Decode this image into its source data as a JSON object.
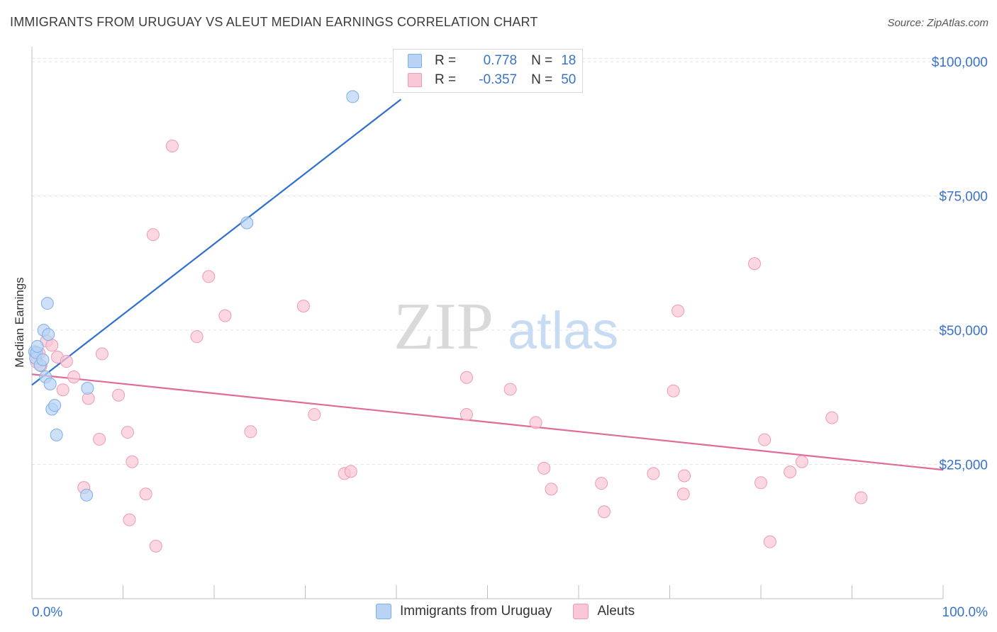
{
  "title": "IMMIGRANTS FROM URUGUAY VS ALEUT MEDIAN EARNINGS CORRELATION CHART",
  "source": "Source: ZipAtlas.com",
  "watermark": {
    "zip": "ZIP",
    "atlas": "atlas"
  },
  "colors": {
    "blue_fill": "#b8d3f3",
    "blue_stroke": "#7eaee6",
    "blue_line": "#2f6fd1",
    "pink_fill": "#f9c6d6",
    "pink_stroke": "#ee9ab5",
    "pink_line": "#e06b96",
    "value_text": "#3a73c9",
    "grid": "#dde3ea"
  },
  "legend_top": {
    "rows": [
      {
        "r_label": "R =",
        "r_value": "0.778",
        "n_label": "N =",
        "n_value": "18"
      },
      {
        "r_label": "R =",
        "r_value": "-0.357",
        "n_label": "N =",
        "n_value": "50"
      }
    ]
  },
  "chart_data": {
    "type": "scatter",
    "title": "IMMIGRANTS FROM URUGUAY VS ALEUT MEDIAN EARNINGS CORRELATION CHART",
    "xlabel": "",
    "ylabel": "Median Earnings",
    "xlim": [
      0,
      100
    ],
    "ylim": [
      0,
      102000
    ],
    "x_tick_labels": [
      "0.0%",
      "100.0%"
    ],
    "y_ticks": [
      25000,
      50000,
      75000,
      100000
    ],
    "y_tick_labels": [
      "$25,000",
      "$50,000",
      "$75,000",
      "$100,000"
    ],
    "series": [
      {
        "name": "Immigrants from Uruguay",
        "color": "blue",
        "r": 0.778,
        "n": 18,
        "trend": {
          "x0": 0,
          "y0": 39800,
          "x1": 40.5,
          "y1": 93000
        },
        "points": [
          [
            0.3,
            46000
          ],
          [
            0.4,
            44800
          ],
          [
            0.5,
            45800
          ],
          [
            0.6,
            47000
          ],
          [
            0.9,
            43500
          ],
          [
            1.2,
            44500
          ],
          [
            1.3,
            50000
          ],
          [
            1.5,
            41300
          ],
          [
            1.7,
            55000
          ],
          [
            1.8,
            49200
          ],
          [
            2.0,
            40000
          ],
          [
            2.2,
            35300
          ],
          [
            2.5,
            36000
          ],
          [
            2.7,
            30500
          ],
          [
            6.1,
            39200
          ],
          [
            6.0,
            19300
          ],
          [
            23.6,
            70000
          ],
          [
            35.2,
            93500
          ]
        ]
      },
      {
        "name": "Aleuts",
        "color": "pink",
        "r": -0.357,
        "n": 50,
        "trend": {
          "x0": 0,
          "y0": 41800,
          "x1": 100,
          "y1": 24000
        },
        "points": [
          [
            0.8,
            45700
          ],
          [
            1.0,
            43400
          ],
          [
            1.6,
            48000
          ],
          [
            2.2,
            47200
          ],
          [
            2.8,
            45000
          ],
          [
            3.4,
            38900
          ],
          [
            3.8,
            44200
          ],
          [
            4.6,
            41300
          ],
          [
            5.7,
            20700
          ],
          [
            6.2,
            37300
          ],
          [
            7.4,
            29700
          ],
          [
            7.7,
            45600
          ],
          [
            9.5,
            37900
          ],
          [
            10.5,
            31000
          ],
          [
            10.7,
            14700
          ],
          [
            11.0,
            25500
          ],
          [
            12.5,
            19500
          ],
          [
            13.3,
            67800
          ],
          [
            13.6,
            9800
          ],
          [
            15.4,
            84300
          ],
          [
            18.1,
            48800
          ],
          [
            19.4,
            60000
          ],
          [
            21.2,
            52700
          ],
          [
            24.0,
            31100
          ],
          [
            29.8,
            54500
          ],
          [
            31.0,
            34300
          ],
          [
            34.3,
            23300
          ],
          [
            35.0,
            23700
          ],
          [
            47.7,
            34300
          ],
          [
            47.7,
            41200
          ],
          [
            52.5,
            39000
          ],
          [
            55.3,
            32800
          ],
          [
            56.2,
            24300
          ],
          [
            57.0,
            20400
          ],
          [
            62.5,
            21500
          ],
          [
            62.8,
            16200
          ],
          [
            68.2,
            23300
          ],
          [
            70.4,
            38700
          ],
          [
            70.9,
            53600
          ],
          [
            71.5,
            19500
          ],
          [
            71.6,
            22900
          ],
          [
            79.3,
            62400
          ],
          [
            80.0,
            21600
          ],
          [
            80.4,
            29600
          ],
          [
            81.0,
            10600
          ],
          [
            83.2,
            23600
          ],
          [
            84.5,
            25500
          ],
          [
            87.8,
            33700
          ],
          [
            91.0,
            18800
          ],
          [
            0.5,
            44100
          ]
        ]
      }
    ]
  },
  "bottom_legend": [
    "Immigrants from Uruguay",
    "Aleuts"
  ]
}
